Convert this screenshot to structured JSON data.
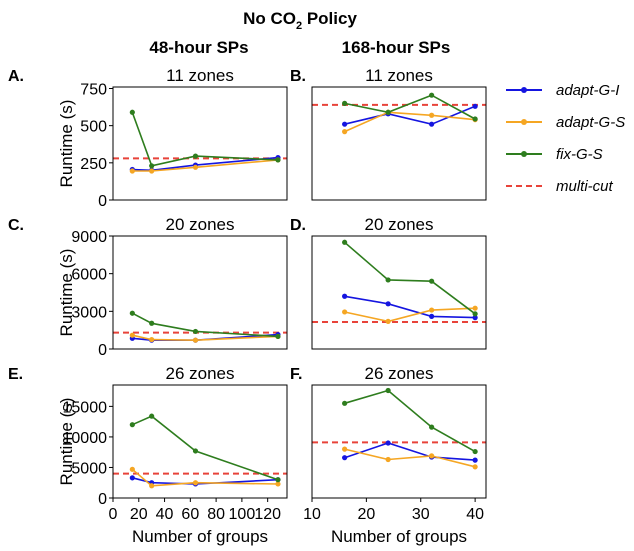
{
  "figure": {
    "title_prefix": "No CO",
    "title_sub": "2",
    "title_suffix": " Policy",
    "col_headers": [
      "48-hour SPs",
      "168-hour SPs"
    ]
  },
  "legend": [
    {
      "name": "adapt-G-I",
      "color": "#1515e0",
      "style": "solid",
      "marker": true
    },
    {
      "name": "adapt-G-S",
      "color": "#f5a623",
      "style": "solid",
      "marker": true
    },
    {
      "name": "fix-G-S",
      "color": "#2e7d1e",
      "style": "solid",
      "marker": true
    },
    {
      "name": "multi-cut",
      "color": "#e8433a",
      "style": "dashed",
      "marker": false
    }
  ],
  "chart_data": [
    {
      "panel": "A.",
      "type": "line",
      "title": "11 zones",
      "ylabel": "Runtime (s)",
      "xlabel": "",
      "xlim": [
        0,
        135
      ],
      "ylim": [
        0,
        760
      ],
      "xticks": [],
      "yticks": [
        0,
        250,
        500,
        750
      ],
      "x": [
        15,
        30,
        64,
        128
      ],
      "series": [
        {
          "name": "adapt-G-I",
          "values": [
            205,
            200,
            235,
            285
          ]
        },
        {
          "name": "adapt-G-S",
          "values": [
            195,
            195,
            220,
            270
          ]
        },
        {
          "name": "fix-G-S",
          "values": [
            590,
            230,
            295,
            270
          ]
        }
      ],
      "reference_line": {
        "name": "multi-cut",
        "value": 280
      }
    },
    {
      "panel": "B.",
      "type": "line",
      "title": "11 zones",
      "ylabel": "",
      "xlabel": "",
      "xlim": [
        10,
        42
      ],
      "ylim": [
        0,
        760
      ],
      "xticks": [],
      "yticks": [],
      "x": [
        16,
        24,
        32,
        40
      ],
      "series": [
        {
          "name": "adapt-G-I",
          "values": [
            510,
            580,
            510,
            630
          ]
        },
        {
          "name": "adapt-G-S",
          "values": [
            460,
            590,
            570,
            540
          ]
        },
        {
          "name": "fix-G-S",
          "values": [
            650,
            590,
            705,
            545
          ]
        }
      ],
      "reference_line": {
        "name": "multi-cut",
        "value": 640
      }
    },
    {
      "panel": "C.",
      "type": "line",
      "title": "20 zones",
      "ylabel": "Runtime (s)",
      "xlabel": "",
      "xlim": [
        0,
        135
      ],
      "ylim": [
        0,
        9000
      ],
      "xticks": [],
      "yticks": [
        0,
        3000,
        6000,
        9000
      ],
      "x": [
        15,
        30,
        64,
        128
      ],
      "series": [
        {
          "name": "adapt-G-I",
          "values": [
            850,
            700,
            700,
            1150
          ]
        },
        {
          "name": "adapt-G-S",
          "values": [
            1100,
            750,
            700,
            1000
          ]
        },
        {
          "name": "fix-G-S",
          "values": [
            2850,
            2050,
            1400,
            1000
          ]
        }
      ],
      "reference_line": {
        "name": "multi-cut",
        "value": 1300
      }
    },
    {
      "panel": "D.",
      "type": "line",
      "title": "20 zones",
      "ylabel": "",
      "xlabel": "",
      "xlim": [
        10,
        42
      ],
      "ylim": [
        0,
        9000
      ],
      "xticks": [],
      "yticks": [],
      "x": [
        16,
        24,
        32,
        40
      ],
      "series": [
        {
          "name": "adapt-G-I",
          "values": [
            4200,
            3600,
            2600,
            2500
          ]
        },
        {
          "name": "adapt-G-S",
          "values": [
            2950,
            2200,
            3100,
            3250
          ]
        },
        {
          "name": "fix-G-S",
          "values": [
            8500,
            5500,
            5400,
            2800
          ]
        }
      ],
      "reference_line": {
        "name": "multi-cut",
        "value": 2150
      }
    },
    {
      "panel": "E.",
      "type": "line",
      "title": "26 zones",
      "ylabel": "Runtime (s)",
      "xlabel": "Number of groups",
      "xlim": [
        0,
        135
      ],
      "ylim": [
        0,
        18500
      ],
      "xticks": [
        0,
        20,
        40,
        60,
        80,
        100,
        120
      ],
      "yticks": [
        0,
        5000,
        10000,
        15000
      ],
      "x": [
        15,
        30,
        64,
        128
      ],
      "series": [
        {
          "name": "adapt-G-I",
          "values": [
            3300,
            2500,
            2300,
            3000
          ]
        },
        {
          "name": "adapt-G-S",
          "values": [
            4700,
            2000,
            2500,
            2300
          ]
        },
        {
          "name": "fix-G-S",
          "values": [
            12000,
            13400,
            7700,
            3000
          ]
        }
      ],
      "reference_line": {
        "name": "multi-cut",
        "value": 4000
      }
    },
    {
      "panel": "F.",
      "type": "line",
      "title": "26 zones",
      "ylabel": "",
      "xlabel": "Number of groups",
      "xlim": [
        10,
        42
      ],
      "ylim": [
        0,
        18500
      ],
      "xticks": [
        10,
        20,
        30,
        40
      ],
      "yticks": [],
      "x": [
        16,
        24,
        32,
        40
      ],
      "series": [
        {
          "name": "adapt-G-I",
          "values": [
            6600,
            9000,
            6700,
            6200
          ]
        },
        {
          "name": "adapt-G-S",
          "values": [
            8000,
            6300,
            6900,
            5100
          ]
        },
        {
          "name": "fix-G-S",
          "values": [
            15500,
            17600,
            11600,
            7600
          ]
        }
      ],
      "reference_line": {
        "name": "multi-cut",
        "value": 9100
      }
    }
  ]
}
